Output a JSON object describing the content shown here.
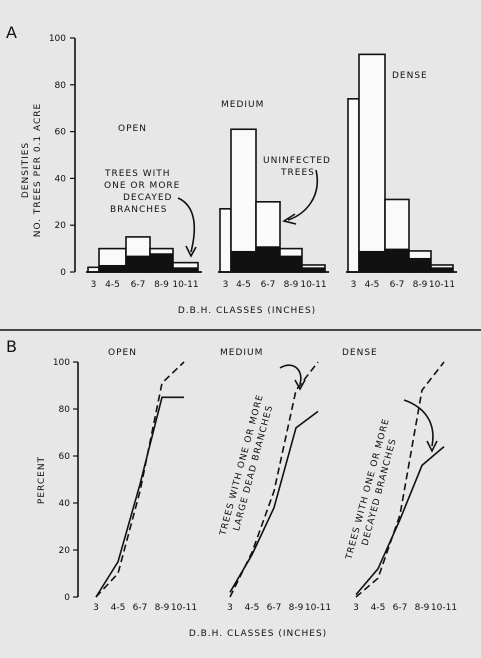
{
  "chart_data": [
    {
      "panel": "A",
      "type": "bar",
      "ylabel_line1": "DENSITIES",
      "ylabel_line2": "NO. TREES PER 0.1 ACRE",
      "xlabel": "D.B.H. CLASSES (INCHES)",
      "ylim": [
        0,
        100
      ],
      "yticks": [
        0,
        20,
        40,
        60,
        80,
        100
      ],
      "categories": [
        "3",
        "4-5",
        "6-7",
        "8-9",
        "10-11"
      ],
      "annotations": {
        "decayed": [
          "TREES WITH",
          "ONE OR MORE",
          "DECAYED",
          "BRANCHES"
        ],
        "uninfected": [
          "UNINFECTED",
          "TREES"
        ]
      },
      "groups": [
        {
          "name": "OPEN",
          "series": [
            {
              "name": "total",
              "values": [
                2,
                10,
                15,
                10,
                4
              ]
            },
            {
              "name": "TREES WITH ONE OR MORE DECAYED BRANCHES",
              "values": [
                0,
                3,
                7,
                8,
                2
              ]
            }
          ]
        },
        {
          "name": "MEDIUM",
          "series": [
            {
              "name": "total",
              "values": [
                27,
                61,
                30,
                10,
                3
              ]
            },
            {
              "name": "TREES WITH ONE OR MORE DECAYED BRANCHES",
              "values": [
                0,
                9,
                11,
                7,
                2
              ]
            }
          ]
        },
        {
          "name": "DENSE",
          "series": [
            {
              "name": "total",
              "values": [
                74,
                93,
                31,
                9,
                3
              ]
            },
            {
              "name": "TREES WITH ONE OR MORE DECAYED BRANCHES",
              "values": [
                0,
                9,
                10,
                6,
                2
              ]
            }
          ]
        }
      ]
    },
    {
      "panel": "B",
      "type": "line",
      "ylabel": "PERCENT",
      "xlabel": "D.B.H. CLASSES (INCHES)",
      "ylim": [
        0,
        100
      ],
      "yticks": [
        0,
        20,
        40,
        60,
        80,
        100
      ],
      "categories": [
        "3",
        "4-5",
        "6-7",
        "8-9",
        "10-11"
      ],
      "groups": [
        {
          "name": "OPEN",
          "series": [
            {
              "name": "solid",
              "values": [
                0,
                15,
                48,
                85,
                85
              ]
            },
            {
              "name": "dashed",
              "values": [
                0,
                10,
                45,
                91,
                100
              ]
            }
          ]
        },
        {
          "name": "MEDIUM",
          "annotation": [
            "TREES WITH ONE OR MORE",
            "LARGE DEAD BRANCHES"
          ],
          "series": [
            {
              "name": "solid",
              "values": [
                2,
                18,
                38,
                72,
                79
              ]
            },
            {
              "name": "dashed",
              "values": [
                0,
                19,
                45,
                88,
                100
              ]
            }
          ]
        },
        {
          "name": "DENSE",
          "annotation": [
            "TREES WITH ONE OR MORE",
            "DECAYED BRANCHES"
          ],
          "series": [
            {
              "name": "solid",
              "values": [
                1,
                12,
                33,
                56,
                64
              ]
            },
            {
              "name": "dashed",
              "values": [
                0,
                8,
                35,
                88,
                100
              ]
            }
          ]
        }
      ]
    }
  ]
}
